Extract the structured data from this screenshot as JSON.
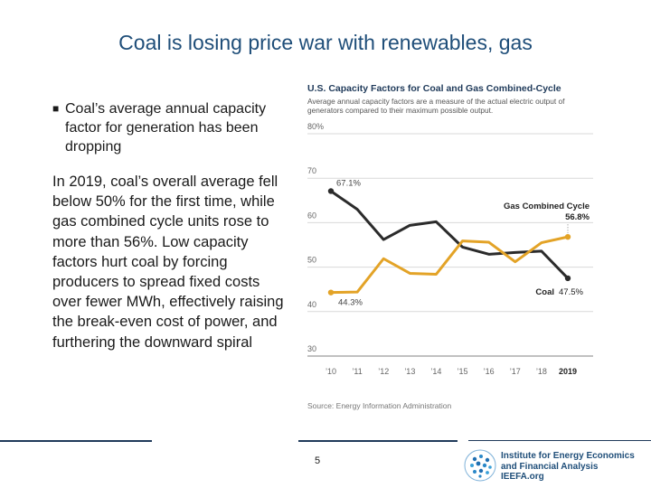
{
  "slide": {
    "title": "Coal is losing price war with renewables, gas",
    "bullet": "Coal’s average annual capacity factor for generation has been dropping",
    "body": "In 2019, coal’s overall average fell below 50% for the first time, while gas combined cycle units rose to more than 56%. Low capacity factors hurt coal by forcing producers to spread fixed costs over fewer MWh, effectively raising the break-even cost of power, and furthering the downward spiral",
    "page_number": "5"
  },
  "logo": {
    "line1": "Institute for Energy Economics",
    "line2": "and Financial Analysis",
    "line3": "IEEFA.org"
  },
  "chart_data": {
    "type": "line",
    "title": "U.S. Capacity Factors for Coal and Gas Combined-Cycle",
    "subtitle": "Average annual capacity factors are a measure of the actual electric output of generators compared to their maximum possible output.",
    "source": "Source: Energy Information Administration",
    "x": [
      "’10",
      "’11",
      "’12",
      "’13",
      "’14",
      "’15",
      "’16",
      "’17",
      "’18",
      "2019"
    ],
    "ylim": [
      30,
      80
    ],
    "yticks": [
      {
        "value": 80,
        "label": "80%"
      },
      {
        "value": 70,
        "label": "70"
      },
      {
        "value": 60,
        "label": "60"
      },
      {
        "value": 50,
        "label": "50"
      },
      {
        "value": 40,
        "label": "40"
      },
      {
        "value": 30,
        "label": "30"
      }
    ],
    "grid": true,
    "series": [
      {
        "name": "Coal",
        "color": "#2b2b2b",
        "values": [
          67.1,
          63.0,
          56.2,
          59.4,
          60.2,
          54.5,
          52.9,
          53.3,
          53.6,
          47.5
        ],
        "start_label": "67.1%",
        "end_label": "47.5%"
      },
      {
        "name": "Gas Combined Cycle",
        "color": "#e3a327",
        "values": [
          44.3,
          44.4,
          51.9,
          48.6,
          48.4,
          55.9,
          55.6,
          51.2,
          55.5,
          56.8
        ],
        "start_label": "44.3%",
        "end_label": "56.8%"
      }
    ]
  }
}
